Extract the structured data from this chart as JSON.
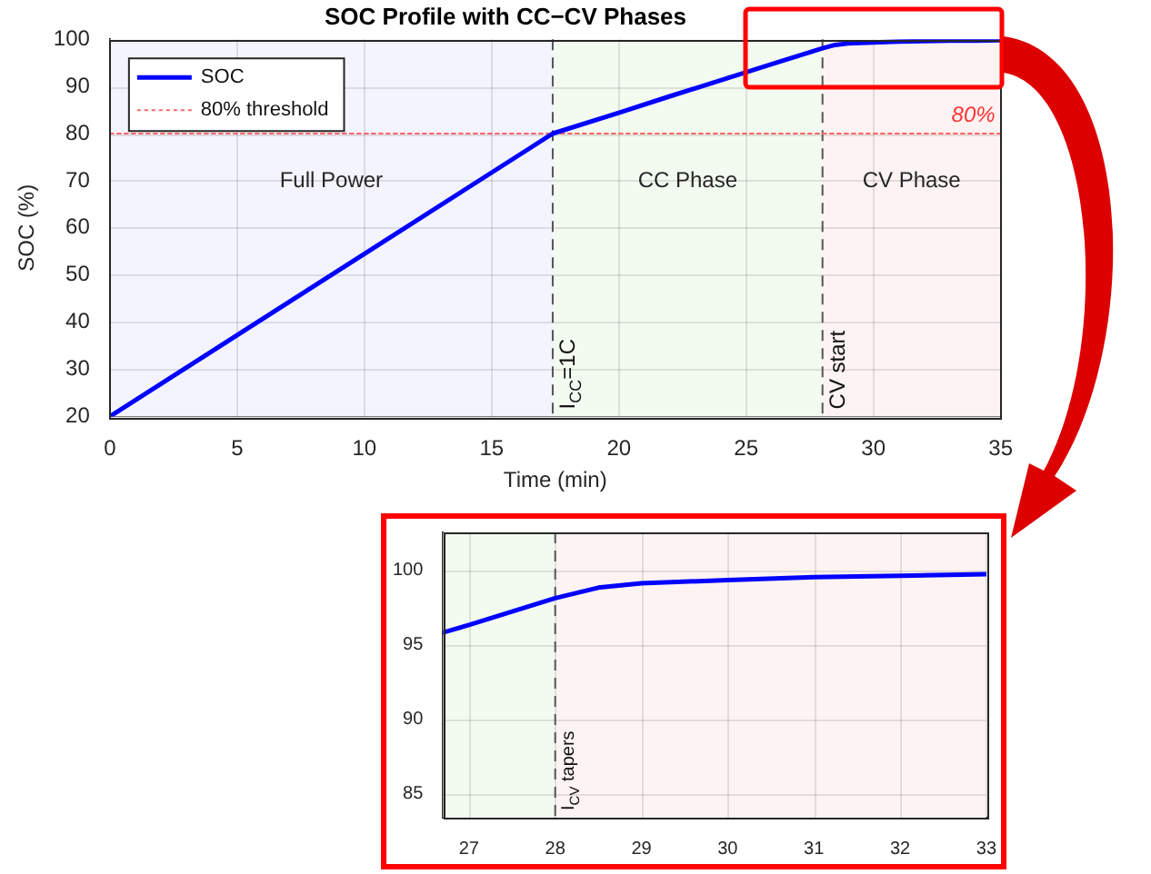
{
  "chart_data": [
    {
      "type": "line",
      "title": "SOC Profile with CC−CV Phases",
      "xlabel": "Time (min)",
      "ylabel": "SOC (%)",
      "x": [
        0,
        17.4,
        20,
        22,
        24,
        26,
        28,
        28.5,
        29,
        30,
        31,
        32,
        33,
        34,
        35
      ],
      "series": [
        {
          "name": "SOC",
          "color": "#0000ff",
          "values": [
            20,
            80,
            84.4,
            87.9,
            91.3,
            94.7,
            98.1,
            98.8,
            99.1,
            99.3,
            99.5,
            99.6,
            99.7,
            99.7,
            99.8
          ]
        },
        {
          "name": "80% threshold",
          "color": "#ff6666",
          "line_style": "dotted",
          "x": [
            0,
            35
          ],
          "values": [
            80,
            80
          ]
        }
      ],
      "bands": [
        {
          "axis": "x",
          "from": 0,
          "to": 17.4,
          "label": "Full Power",
          "color": "#f4f4fe"
        },
        {
          "axis": "x",
          "from": 17.4,
          "to": 28,
          "label": "CC Phase",
          "color": "#f3fbf1"
        },
        {
          "axis": "x",
          "from": 28,
          "to": 35,
          "label": "CV Phase",
          "color": "#fdf3f3"
        }
      ],
      "ref_lines": [
        {
          "axis": "x",
          "value": 17.4,
          "color": "#555555",
          "line_style": "dashed"
        },
        {
          "axis": "x",
          "value": 28,
          "label": "CV start",
          "color": "#555555",
          "line_style": "dashed"
        }
      ],
      "annotations": [
        {
          "text": "80%",
          "x": 35,
          "y": 80
        },
        {
          "text": "I$_{CC}$=1C",
          "x": 17.4,
          "y": 20
        }
      ],
      "xlim": [
        0,
        35
      ],
      "ylim": [
        20,
        100
      ],
      "xticks": [
        0,
        5,
        10,
        15,
        20,
        25,
        30,
        35
      ],
      "yticks": [
        20,
        30,
        40,
        50,
        60,
        70,
        80,
        90,
        100
      ],
      "grid": true,
      "legend": "top left",
      "marker": "none",
      "line_style": "solid"
    },
    {
      "type": "line",
      "x": [
        26.7,
        27,
        28,
        28.5,
        29,
        30,
        31,
        32,
        33
      ],
      "series": [
        {
          "color": "#0000ff",
          "values": [
            95.8,
            96.3,
            98.1,
            98.8,
            99.1,
            99.3,
            99.5,
            99.6,
            99.7
          ]
        }
      ],
      "bands": [
        {
          "axis": "x",
          "from": 26.7,
          "to": 28,
          "color": "#f3fbf1"
        },
        {
          "axis": "x",
          "from": 28,
          "to": 33,
          "color": "#fdf3f3"
        }
      ],
      "ref_lines": [
        {
          "axis": "x",
          "value": 28,
          "label": "I$_{CV}$ tapers",
          "color": "#555555",
          "line_style": "dashed"
        }
      ],
      "xlim": [
        26.7,
        33
      ],
      "ylim": [
        83.4,
        102.5
      ],
      "xticks": [
        27,
        28,
        29,
        30,
        31,
        32,
        33
      ],
      "yticks": [
        85,
        90,
        95,
        100
      ],
      "grid": true,
      "marker": "none",
      "line_style": "solid"
    }
  ]
}
